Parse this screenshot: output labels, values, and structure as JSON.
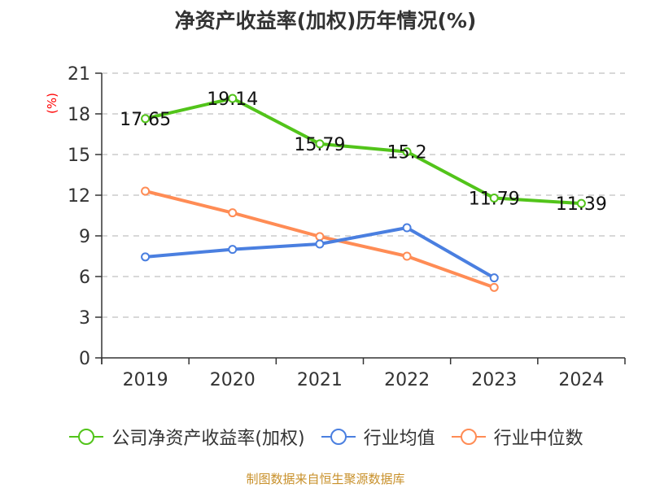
{
  "title": "净资产收益率(加权)历年情况(%)",
  "source": "制图数据来自恒生聚源数据库",
  "colors": {
    "company": "#52c41a",
    "industry_avg": "#4a7fe0",
    "industry_median": "#ff8c55",
    "axis": "#333333",
    "grid": "#cccccc",
    "unit_label": "#ff0000"
  },
  "chart_data": {
    "type": "line",
    "title": "净资产收益率(加权)历年情况(%)",
    "xlabel": "",
    "ylabel": "(%)",
    "ylim": [
      0,
      21
    ],
    "yticks": [
      0,
      3,
      6,
      9,
      12,
      15,
      18,
      21
    ],
    "grid": true,
    "legend_position": "bottom",
    "categories": [
      "2019",
      "2020",
      "2021",
      "2022",
      "2023",
      "2024"
    ],
    "series": [
      {
        "name": "公司净资产收益率(加权)",
        "color": "#52c41a",
        "values": [
          17.65,
          19.14,
          15.79,
          15.2,
          11.79,
          11.39
        ],
        "labels": [
          "17.65",
          "19.14",
          "15.79",
          "15.2",
          "11.79",
          "11.39"
        ]
      },
      {
        "name": "行业均值",
        "color": "#4a7fe0",
        "values": [
          7.45,
          8.0,
          8.4,
          9.6,
          5.9,
          null
        ]
      },
      {
        "name": "行业中位数",
        "color": "#ff8c55",
        "values": [
          12.3,
          10.7,
          8.95,
          7.5,
          5.2,
          null
        ]
      }
    ]
  }
}
